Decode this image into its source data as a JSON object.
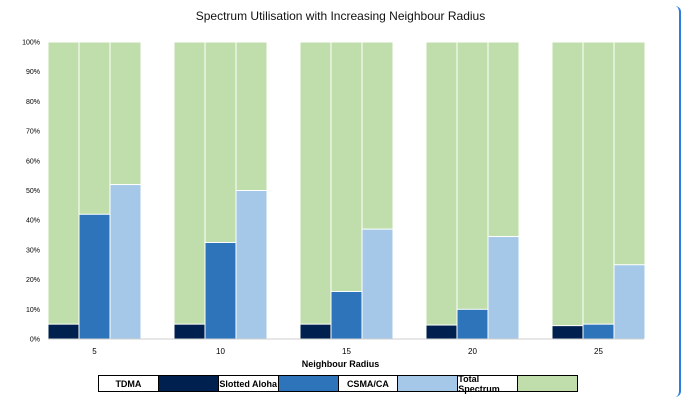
{
  "chart_data": {
    "type": "bar",
    "title": "Spectrum Utilisation with Increasing Neighbour Radius",
    "xlabel": "Neighbour Radius",
    "ylabel": "",
    "ylim": [
      0,
      100
    ],
    "yticks": [
      "0%",
      "10%",
      "20%",
      "30%",
      "40%",
      "50%",
      "60%",
      "70%",
      "80%",
      "90%",
      "100%"
    ],
    "categories": [
      "5",
      "10",
      "15",
      "20",
      "25"
    ],
    "series": [
      {
        "name": "TDMA",
        "values": [
          5,
          5,
          5,
          4.7,
          4.5
        ],
        "color": "#00214f"
      },
      {
        "name": "Slotted Aloha",
        "values": [
          42,
          32.5,
          16,
          10,
          5
        ],
        "color": "#2e74ba"
      },
      {
        "name": "CSMA/CA",
        "values": [
          52,
          50,
          37,
          34.5,
          25
        ],
        "color": "#a6c8e8"
      }
    ],
    "background_series": {
      "name": "Total Spectrum",
      "value": 100,
      "color": "#bfdeab"
    },
    "grid": false,
    "legend_position": "bottom"
  }
}
